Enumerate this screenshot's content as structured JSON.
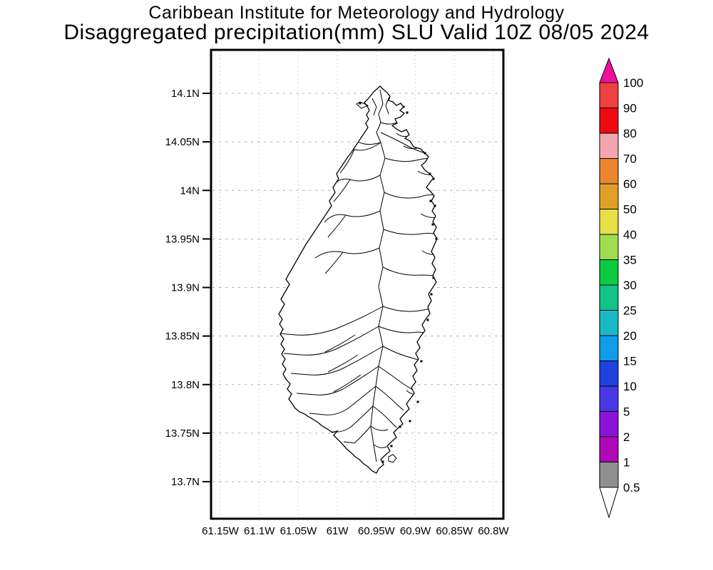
{
  "title": {
    "line1": "Caribbean Institute for Meteorology and Hydrology",
    "line2": "Disaggregated precipitation(mm) SLU Valid 10Z 08/05 2024"
  },
  "axes": {
    "y_ticks": [
      "14.1N",
      "14.05N",
      "14N",
      "13.95N",
      "13.9N",
      "13.85N",
      "13.8N",
      "13.75N",
      "13.7N"
    ],
    "x_ticks": [
      "61.15W",
      "61.1W",
      "61.05W",
      "61W",
      "60.95W",
      "60.9W",
      "60.85W",
      "60.8W"
    ]
  },
  "colorbar": {
    "labels": [
      "100",
      "90",
      "80",
      "70",
      "60",
      "50",
      "40",
      "35",
      "30",
      "25",
      "20",
      "15",
      "10",
      "5",
      "2",
      "1",
      "0.5"
    ],
    "segment_colors": [
      "#f04040",
      "#ee0a10",
      "#f4a6b0",
      "#ea862c",
      "#dfa02a",
      "#e6df48",
      "#a0dd4e",
      "#0ccb40",
      "#0fc389",
      "#16b9c5",
      "#0f9ce8",
      "#1f41e0",
      "#4b36e6",
      "#8b13d8",
      "#b008b8",
      "#8f8f8f"
    ],
    "over_color": "#f2109e",
    "under_color": "#ffffff",
    "outline_color": "#000000"
  },
  "map": {
    "region": "Saint Lucia",
    "feature": "watershed boundaries",
    "land_fill": "#ffffff",
    "line_color": "#000000",
    "grid_color": "#b4b4b4"
  },
  "chart_data": {
    "type": "map",
    "title": "Disaggregated precipitation(mm) SLU Valid 10Z 08/05 2024",
    "institution": "Caribbean Institute for Meteorology and Hydrology",
    "region": "Saint Lucia (SLU)",
    "valid_time": "10Z 08/05 2024",
    "lat_ticks": [
      "14.1N",
      "14.05N",
      "14N",
      "13.95N",
      "13.9N",
      "13.85N",
      "13.8N",
      "13.75N",
      "13.7N"
    ],
    "lon_ticks": [
      "61.15W",
      "61.1W",
      "61.05W",
      "61W",
      "60.95W",
      "60.9W",
      "60.85W",
      "60.8W"
    ],
    "colorbar_levels_mm": [
      0.5,
      1,
      2,
      5,
      10,
      15,
      20,
      25,
      30,
      35,
      40,
      50,
      60,
      70,
      80,
      90,
      100
    ],
    "shaded_precipitation": "none visible - island interior unshaded (below 0.5 mm)"
  }
}
